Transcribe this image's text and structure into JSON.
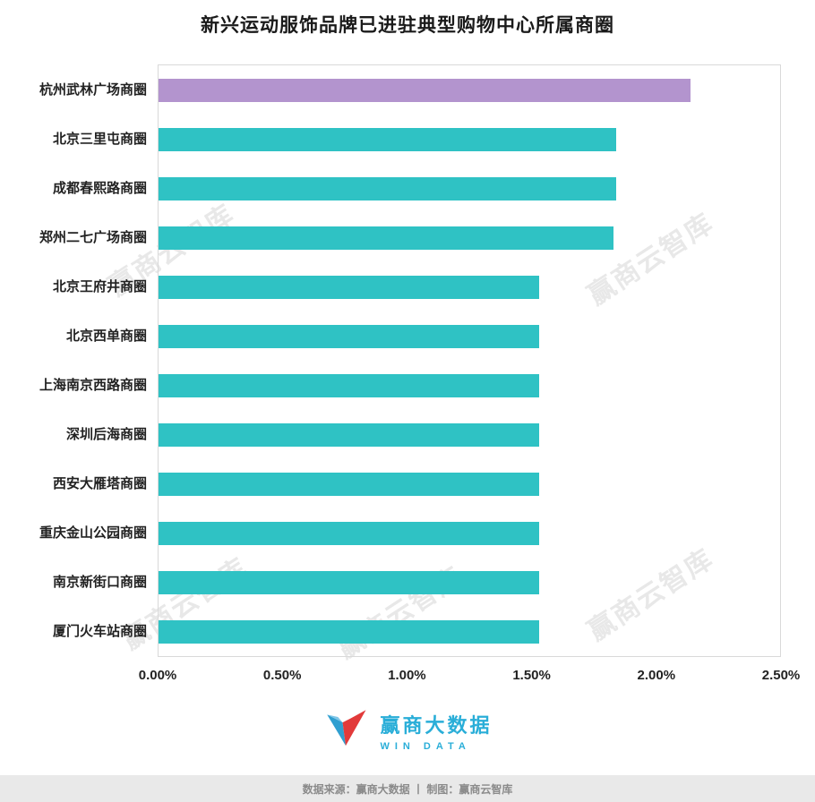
{
  "title": "新兴运动服饰品牌已进驻典型购物中心所属商圈",
  "chart_data": {
    "type": "bar",
    "orientation": "horizontal",
    "title": "新兴运动服饰品牌已进驻典型购物中心所属商圈",
    "categories": [
      "杭州武林广场商圈",
      "北京三里屯商圈",
      "成都春熙路商圈",
      "郑州二七广场商圈",
      "北京王府井商圈",
      "北京西单商圈",
      "上海南京西路商圈",
      "深圳后海商圈",
      "西安大雁塔商圈",
      "重庆金山公园商圈",
      "南京新街口商圈",
      "厦门火车站商圈"
    ],
    "values": [
      2.14,
      1.84,
      1.84,
      1.83,
      1.53,
      1.53,
      1.53,
      1.53,
      1.53,
      1.53,
      1.53,
      1.53
    ],
    "value_unit": "%",
    "xlim": [
      0,
      2.5
    ],
    "x_ticks": [
      "0.00%",
      "0.50%",
      "1.00%",
      "1.50%",
      "2.00%",
      "2.50%"
    ],
    "grid": false,
    "highlight_index": 0,
    "colors": {
      "highlight": "#b394ce",
      "default": "#2fc2c4"
    }
  },
  "watermark": {
    "text": "赢商云智库"
  },
  "logo": {
    "brand": "赢商大数据",
    "sub": "WIN DATA",
    "color": "#2aaed8"
  },
  "footer": {
    "text": "数据来源：赢商大数据 丨 制图：赢商云智库"
  }
}
